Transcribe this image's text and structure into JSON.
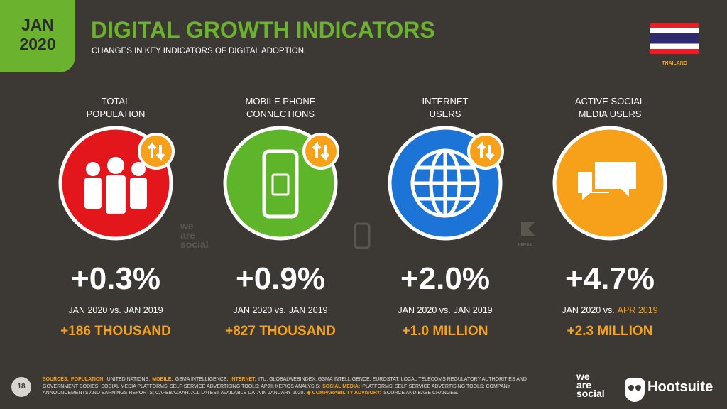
{
  "header": {
    "badge": [
      "JAN",
      "2020"
    ],
    "title": "DIGITAL GROWTH INDICATORS",
    "subtitle": "CHANGES IN KEY INDICATORS OF DIGITAL ADOPTION",
    "country": "THAILAND"
  },
  "indicators": [
    {
      "label": [
        "TOTAL",
        "POPULATION"
      ],
      "change": "+0.3%",
      "period": {
        "base": "JAN 2020 vs.",
        "compare": "JAN 2019"
      },
      "absolute": "+186 THOUSAND"
    },
    {
      "label": [
        "MOBILE PHONE",
        "CONNECTIONS"
      ],
      "change": "+0.9%",
      "period": {
        "base": "JAN 2020 vs.",
        "compare": "JAN 2019"
      },
      "absolute": "+827 THOUSAND"
    },
    {
      "label": [
        "INTERNET",
        "USERS"
      ],
      "change": "+2.0%",
      "period": {
        "base": "JAN 2020 vs.",
        "compare": "JAN 2019"
      },
      "absolute": "+1.0 MILLION"
    },
    {
      "label": [
        "ACTIVE SOCIAL",
        "MEDIA USERS"
      ],
      "change": "+4.7%",
      "period": {
        "base": "JAN 2020 vs.",
        "compare": "APR 2019"
      },
      "absolute": "+2.3 MILLION"
    }
  ],
  "watermarks": {
    "we_are_social": [
      "we",
      "are",
      "social"
    ],
    "kepios": "KEPIOS"
  },
  "footer": {
    "page": "18",
    "sources": {
      "heading": "SOURCES:",
      "items": [
        {
          "label": "POPULATION:",
          "text": "UNITED NATIONS;"
        },
        {
          "label": "MOBILE:",
          "text": "GSMA INTELLIGENCE;"
        },
        {
          "label": "INTERNET:",
          "text": "ITU; GLOBALWEBINDEX; GSMA INTELLIGENCE; EUROSTAT; LOCAL TELECOMS REGULATORY AUTHORITIES AND GOVERNMENT BODIES; SOCIAL MEDIA PLATFORMS' SELF-SERVICE ADVERTISING TOOLS; APJII; KEPIOS ANALYSIS;"
        },
        {
          "label": "SOCIAL MEDIA:",
          "text": "PLATFORMS' SELF-SERVICE ADVERTISING TOOLS; COMPANY ANNOUNCEMENTS AND EARNINGS REPORTS; CAFEBAZAAR. ALL LATEST AVAILABLE DATA IN JANUARY 2020."
        },
        {
          "label": "◈ COMPARABILITY ADVISORY:",
          "text": "SOURCE AND BASE CHANGES."
        }
      ]
    },
    "logos": {
      "we_are_social": [
        "we",
        "are",
        "social"
      ],
      "hootsuite": "Hootsuite"
    }
  }
}
